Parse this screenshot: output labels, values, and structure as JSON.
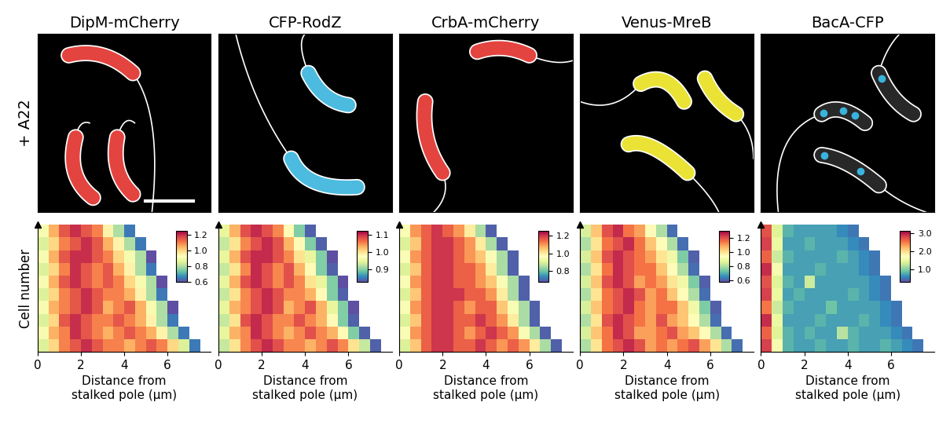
{
  "chart_data": [
    {
      "type": "heatmap",
      "title": "DipM-mCherry",
      "image_label": "+ A22",
      "color": "#e0302a",
      "xlabel": "Distance from\nstalked pole (µm)",
      "ylabel": "Cell number",
      "tick_labels": "x",
      "xlim": [
        0,
        8
      ],
      "xticks": [
        0,
        2,
        4,
        6
      ],
      "x_edges": [
        0,
        0.5,
        1,
        1.5,
        2,
        2.5,
        3,
        3.5,
        4,
        4.5,
        5,
        5.5,
        6,
        6.5,
        7,
        7.5,
        8
      ],
      "colorbar_lim": [
        0.6,
        1.25
      ],
      "colorbar_ticks": [
        0.6,
        0.8,
        1.0,
        1.2
      ],
      "cells": [
        [
          0.85,
          1.0,
          1.1,
          1.15,
          1.2,
          1.15,
          1.1,
          1.1,
          1.05,
          1.1,
          1.15,
          1.1,
          1.0,
          0.85,
          0.65,
          null
        ],
        [
          0.9,
          1.05,
          1.1,
          1.2,
          1.15,
          1.1,
          1.05,
          1.1,
          1.15,
          1.1,
          1.05,
          0.95,
          0.8,
          0.65,
          null,
          null
        ],
        [
          0.85,
          1.0,
          1.15,
          1.2,
          1.15,
          1.1,
          1.1,
          1.15,
          1.1,
          1.05,
          0.95,
          0.8,
          0.65,
          null,
          null,
          null
        ],
        [
          0.9,
          1.05,
          1.1,
          1.15,
          1.2,
          1.15,
          1.05,
          1.1,
          1.15,
          1.05,
          0.9,
          0.8,
          0.6,
          null,
          null,
          null
        ],
        [
          0.85,
          1.0,
          1.1,
          1.15,
          1.2,
          1.15,
          1.1,
          1.1,
          1.05,
          0.95,
          0.8,
          0.65,
          null,
          null,
          null,
          null
        ],
        [
          0.9,
          1.05,
          1.15,
          1.2,
          1.15,
          1.1,
          1.15,
          1.1,
          1.0,
          0.9,
          0.8,
          0.6,
          null,
          null,
          null,
          null
        ],
        [
          0.85,
          1.0,
          1.1,
          1.2,
          1.15,
          1.1,
          1.15,
          1.05,
          0.95,
          0.8,
          0.65,
          null,
          null,
          null,
          null,
          null
        ],
        [
          0.9,
          1.05,
          1.15,
          1.2,
          1.2,
          1.15,
          1.1,
          1.0,
          0.9,
          0.8,
          0.6,
          null,
          null,
          null,
          null,
          null
        ],
        [
          0.85,
          1.0,
          1.1,
          1.15,
          1.2,
          1.15,
          1.05,
          0.95,
          0.8,
          0.65,
          null,
          null,
          null,
          null,
          null,
          null
        ],
        [
          0.9,
          1.05,
          1.15,
          1.2,
          1.15,
          1.1,
          0.95,
          0.8,
          0.65,
          null,
          null,
          null,
          null,
          null,
          null,
          null
        ]
      ]
    },
    {
      "type": "heatmap",
      "title": "CFP-RodZ",
      "color": "#3ab4dc",
      "xlabel": "Distance from\nstalked pole (µm)",
      "tick_labels": "x",
      "xlim": [
        0,
        8
      ],
      "xticks": [
        0,
        2,
        4,
        6
      ],
      "x_edges": [
        0,
        0.5,
        1,
        1.5,
        2,
        2.5,
        3,
        3.5,
        4,
        4.5,
        5,
        5.5,
        6,
        6.5,
        7,
        7.5,
        8
      ],
      "colorbar_lim": [
        0.83,
        1.12
      ],
      "colorbar_ticks": [
        0.9,
        1.0,
        1.1
      ],
      "cells": [
        [
          0.93,
          1.0,
          1.05,
          1.08,
          1.1,
          1.08,
          1.05,
          1.05,
          1.03,
          1.05,
          1.08,
          1.05,
          1.0,
          0.93,
          0.84,
          null
        ],
        [
          0.95,
          1.03,
          1.05,
          1.1,
          1.08,
          1.05,
          1.03,
          1.05,
          1.08,
          1.05,
          1.03,
          0.98,
          0.9,
          0.84,
          null,
          null
        ],
        [
          0.93,
          1.0,
          1.08,
          1.1,
          1.08,
          1.05,
          1.05,
          1.08,
          1.05,
          1.03,
          0.98,
          0.9,
          0.84,
          null,
          null,
          null
        ],
        [
          0.95,
          1.03,
          1.05,
          1.08,
          1.1,
          1.08,
          1.03,
          1.05,
          1.08,
          1.03,
          0.95,
          0.9,
          0.83,
          null,
          null,
          null
        ],
        [
          0.93,
          1.0,
          1.05,
          1.08,
          1.1,
          1.08,
          1.05,
          1.05,
          1.03,
          0.98,
          0.9,
          0.84,
          null,
          null,
          null,
          null
        ],
        [
          0.95,
          1.03,
          1.08,
          1.1,
          1.08,
          1.05,
          1.08,
          1.05,
          1.0,
          0.95,
          0.9,
          0.83,
          null,
          null,
          null,
          null
        ],
        [
          0.93,
          1.0,
          1.05,
          1.1,
          1.08,
          1.05,
          1.08,
          1.03,
          0.98,
          0.9,
          0.84,
          null,
          null,
          null,
          null,
          null
        ],
        [
          0.95,
          1.03,
          1.08,
          1.1,
          1.1,
          1.08,
          1.05,
          1.0,
          0.95,
          0.9,
          0.83,
          null,
          null,
          null,
          null,
          null
        ],
        [
          0.93,
          1.0,
          1.05,
          1.08,
          1.1,
          1.08,
          1.03,
          0.98,
          0.9,
          0.84,
          null,
          null,
          null,
          null,
          null,
          null
        ],
        [
          0.95,
          1.03,
          1.08,
          1.1,
          1.08,
          1.05,
          0.98,
          0.9,
          0.84,
          null,
          null,
          null,
          null,
          null,
          null,
          null
        ]
      ]
    },
    {
      "type": "heatmap",
      "title": "CrbA-mCherry",
      "color": "#e0302a",
      "xlabel": "Distance from\nstalked pole (µm)",
      "tick_labels": "x",
      "xlim": [
        0,
        8
      ],
      "xticks": [
        0,
        2,
        4,
        6
      ],
      "x_edges": [
        0,
        0.5,
        1,
        1.5,
        2,
        2.5,
        3,
        3.5,
        4,
        4.5,
        5,
        5.5,
        6,
        6.5,
        7,
        7.5,
        8
      ],
      "colorbar_lim": [
        0.68,
        1.25
      ],
      "colorbar_ticks": [
        0.8,
        1.0,
        1.2
      ],
      "cells": [
        [
          0.9,
          1.05,
          1.15,
          1.2,
          1.2,
          1.15,
          1.15,
          1.2,
          1.15,
          1.1,
          1.15,
          1.1,
          1.0,
          0.85,
          0.7,
          null
        ],
        [
          0.95,
          1.1,
          1.15,
          1.2,
          1.2,
          1.15,
          1.1,
          1.15,
          1.2,
          1.15,
          1.1,
          0.95,
          0.85,
          0.7,
          null,
          null
        ],
        [
          0.9,
          1.05,
          1.15,
          1.2,
          1.2,
          1.15,
          1.15,
          1.2,
          1.15,
          1.1,
          1.0,
          0.85,
          0.7,
          null,
          null,
          null
        ],
        [
          0.95,
          1.1,
          1.15,
          1.2,
          1.2,
          1.15,
          1.1,
          1.15,
          1.15,
          1.05,
          0.95,
          0.85,
          0.7,
          null,
          null,
          null
        ],
        [
          0.9,
          1.05,
          1.15,
          1.2,
          1.2,
          1.2,
          1.15,
          1.15,
          1.1,
          1.0,
          0.85,
          0.7,
          null,
          null,
          null,
          null
        ],
        [
          0.95,
          1.1,
          1.15,
          1.2,
          1.2,
          1.15,
          1.15,
          1.1,
          1.05,
          0.95,
          0.85,
          0.7,
          null,
          null,
          null,
          null
        ],
        [
          0.9,
          1.05,
          1.15,
          1.2,
          1.2,
          1.15,
          1.15,
          1.1,
          1.0,
          0.85,
          0.7,
          null,
          null,
          null,
          null,
          null
        ],
        [
          0.95,
          1.1,
          1.15,
          1.2,
          1.2,
          1.15,
          1.1,
          1.05,
          0.95,
          0.85,
          0.7,
          null,
          null,
          null,
          null,
          null
        ],
        [
          0.9,
          1.05,
          1.15,
          1.2,
          1.2,
          1.15,
          1.1,
          1.0,
          0.85,
          0.7,
          null,
          null,
          null,
          null,
          null,
          null
        ],
        [
          0.95,
          1.1,
          1.15,
          1.2,
          1.15,
          1.1,
          1.0,
          0.85,
          0.7,
          null,
          null,
          null,
          null,
          null,
          null,
          null
        ]
      ]
    },
    {
      "type": "heatmap",
      "title": "Venus-MreB",
      "color": "#e8e020",
      "xlabel": "Distance from\nstalked pole (µm)",
      "tick_labels": "x",
      "xlim": [
        0,
        8
      ],
      "xticks": [
        0,
        2,
        4,
        6
      ],
      "x_edges": [
        0,
        0.5,
        1,
        1.5,
        2,
        2.5,
        3,
        3.5,
        4,
        4.5,
        5,
        5.5,
        6,
        6.5,
        7,
        7.5,
        8
      ],
      "colorbar_lim": [
        0.58,
        1.3
      ],
      "colorbar_ticks": [
        0.6,
        0.8,
        1.0,
        1.2
      ],
      "cells": [
        [
          0.8,
          1.0,
          1.15,
          1.2,
          1.25,
          1.2,
          1.1,
          1.15,
          1.1,
          1.15,
          1.2,
          1.1,
          1.0,
          0.8,
          0.62,
          null
        ],
        [
          0.85,
          1.05,
          1.15,
          1.25,
          1.2,
          1.1,
          1.1,
          1.15,
          1.2,
          1.1,
          1.05,
          0.95,
          0.8,
          0.62,
          null,
          null
        ],
        [
          0.8,
          1.0,
          1.2,
          1.25,
          1.2,
          1.15,
          1.1,
          1.2,
          1.1,
          1.05,
          0.95,
          0.8,
          0.62,
          null,
          null,
          null
        ],
        [
          0.85,
          1.05,
          1.15,
          1.2,
          1.25,
          1.15,
          1.1,
          1.15,
          1.15,
          1.05,
          0.9,
          0.75,
          0.6,
          null,
          null,
          null
        ],
        [
          0.8,
          1.0,
          1.15,
          1.2,
          1.25,
          1.2,
          1.1,
          1.15,
          1.05,
          0.95,
          0.8,
          0.62,
          null,
          null,
          null,
          null
        ],
        [
          0.85,
          1.05,
          1.2,
          1.25,
          1.2,
          1.1,
          1.15,
          1.1,
          1.0,
          0.9,
          0.75,
          0.6,
          null,
          null,
          null,
          null
        ],
        [
          0.8,
          1.0,
          1.15,
          1.25,
          1.2,
          1.15,
          1.15,
          1.05,
          0.95,
          0.8,
          0.62,
          null,
          null,
          null,
          null,
          null
        ],
        [
          0.85,
          1.05,
          1.2,
          1.25,
          1.2,
          1.15,
          1.1,
          1.0,
          0.9,
          0.75,
          0.6,
          null,
          null,
          null,
          null,
          null
        ],
        [
          0.8,
          1.0,
          1.15,
          1.2,
          1.25,
          1.15,
          1.05,
          0.95,
          0.8,
          0.62,
          null,
          null,
          null,
          null,
          null,
          null
        ],
        [
          0.85,
          1.05,
          1.2,
          1.25,
          1.15,
          1.1,
          0.95,
          0.8,
          0.62,
          null,
          null,
          null,
          null,
          null,
          null,
          null
        ]
      ]
    },
    {
      "type": "heatmap",
      "title": "BacA-CFP",
      "color": "#3ab4dc",
      "xlabel": "Distance from\nstalked pole (µm)",
      "tick_labels": "x",
      "xlim": [
        0,
        8
      ],
      "xticks": [
        0,
        2,
        4,
        6
      ],
      "x_edges": [
        0,
        0.5,
        1,
        1.5,
        2,
        2.5,
        3,
        3.5,
        4,
        4.5,
        5,
        5.5,
        6,
        6.5,
        7,
        7.5,
        8
      ],
      "colorbar_lim": [
        0.3,
        3.1
      ],
      "colorbar_ticks": [
        1.0,
        2.0,
        3.0
      ],
      "cells": [
        [
          2.8,
          1.6,
          0.8,
          0.7,
          0.7,
          0.8,
          0.7,
          0.7,
          0.8,
          0.7,
          0.7,
          0.8,
          0.7,
          0.6,
          0.5,
          null
        ],
        [
          2.6,
          1.4,
          0.8,
          0.7,
          0.8,
          0.7,
          0.7,
          1.2,
          0.8,
          0.7,
          0.7,
          0.7,
          0.6,
          0.5,
          null,
          null
        ],
        [
          2.9,
          1.5,
          0.7,
          0.7,
          0.7,
          0.8,
          0.7,
          0.7,
          0.7,
          0.8,
          0.7,
          0.6,
          0.5,
          null,
          null,
          null
        ],
        [
          2.5,
          1.3,
          0.8,
          0.7,
          0.7,
          0.7,
          0.9,
          0.7,
          0.7,
          0.7,
          0.7,
          0.6,
          0.5,
          null,
          null,
          null
        ],
        [
          2.8,
          1.5,
          0.7,
          0.8,
          0.7,
          0.7,
          0.7,
          0.7,
          0.8,
          0.7,
          0.6,
          0.5,
          null,
          null,
          null,
          null
        ],
        [
          2.7,
          1.4,
          0.8,
          0.7,
          1.3,
          0.7,
          0.7,
          0.7,
          0.7,
          0.7,
          0.6,
          0.5,
          null,
          null,
          null,
          null
        ],
        [
          2.9,
          1.6,
          0.7,
          0.7,
          0.7,
          0.8,
          0.7,
          0.7,
          0.7,
          0.6,
          0.5,
          null,
          null,
          null,
          null,
          null
        ],
        [
          2.6,
          1.3,
          0.8,
          0.7,
          0.7,
          0.7,
          0.7,
          0.8,
          0.7,
          0.6,
          0.5,
          null,
          null,
          null,
          null,
          null
        ],
        [
          2.8,
          1.5,
          0.7,
          0.7,
          0.8,
          0.7,
          0.7,
          0.7,
          0.6,
          0.5,
          null,
          null,
          null,
          null,
          null,
          null
        ],
        [
          2.7,
          1.4,
          0.8,
          0.7,
          0.7,
          0.7,
          0.7,
          0.6,
          0.5,
          null,
          null,
          null,
          null,
          null,
          null,
          null
        ]
      ]
    }
  ]
}
